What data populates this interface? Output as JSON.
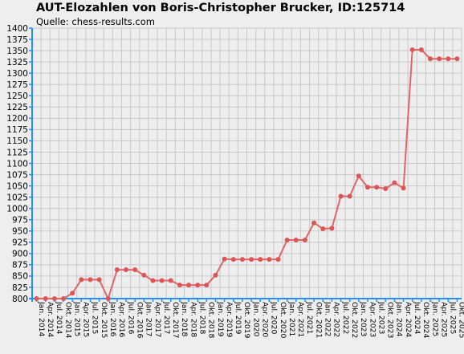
{
  "chart_data": {
    "type": "line",
    "title": "AUT-Elozahlen von Boris-Christopher Brucker, ID:125714",
    "subtitle": "Quelle: chess-results.com",
    "xlabel": "",
    "ylabel": "",
    "ylim": [
      800,
      1400
    ],
    "ytick_step": 25,
    "grid": true,
    "legend": "none",
    "colors": {
      "background": "#eeeeee",
      "plot_background": "#eeeeee",
      "grid": "#c8c8c8",
      "axis": "#1e90ff",
      "line": "#e06666",
      "marker": "#dd5555"
    },
    "categories": [
      "Jan. 2014",
      "Apr. 2014",
      "Jul. 2014",
      "Okt. 2014",
      "Jan. 2015",
      "Apr. 2015",
      "Jul. 2015",
      "Okt. 2015",
      "Jan. 2016",
      "Apr. 2016",
      "Jul. 2016",
      "Okt. 2016",
      "Jan. 2017",
      "Apr. 2017",
      "Jul. 2017",
      "Okt. 2017",
      "Jan. 2018",
      "Apr. 2018",
      "Jul. 2018",
      "Okt. 2018",
      "Jan. 2019",
      "Apr. 2019",
      "Jul. 2019",
      "Okt. 2019",
      "Jan. 2020",
      "Apr. 2020",
      "Jul. 2020",
      "Okt. 2020",
      "Jan. 2021",
      "Apr. 2021",
      "Jul. 2021",
      "Okt. 2021",
      "Jan. 2022",
      "Apr. 2022",
      "Jul. 2022",
      "Okt. 2022",
      "Jan. 2023",
      "Apr. 2023",
      "Jul. 2023",
      "Okt. 2023",
      "Jan. 2024",
      "Apr. 2024",
      "Jul. 2024",
      "Okt. 2024",
      "Jan. 2025",
      "Apr. 2025",
      "Jul. 2025",
      "Okt. 2025"
    ],
    "series": [
      {
        "values": [
          800,
          800,
          800,
          800,
          812,
          842,
          842,
          842,
          800,
          864,
          864,
          864,
          852,
          840,
          840,
          840,
          830,
          830,
          830,
          830,
          852,
          888,
          887,
          887,
          887,
          887,
          887,
          887,
          930,
          930,
          930,
          968,
          955,
          956,
          1027,
          1027,
          1072,
          1047,
          1047,
          1044,
          1057,
          1045,
          1352,
          1352,
          1332,
          1332,
          1332,
          1332
        ]
      }
    ]
  }
}
